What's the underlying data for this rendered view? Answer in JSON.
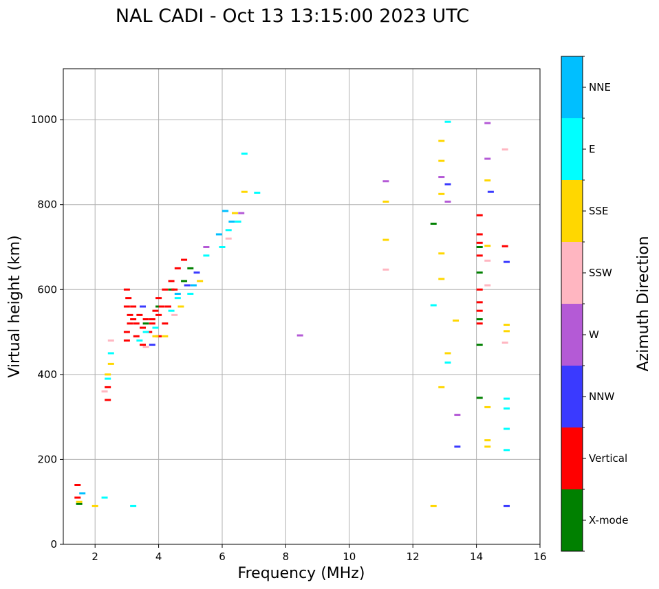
{
  "chart_data": {
    "type": "scatter",
    "title": "NAL CADI - Oct 13 13:15:00 2023 UTC",
    "xlabel": "Frequency (MHz)",
    "ylabel": "Virtual height (km)",
    "xlim": [
      1,
      16
    ],
    "ylim": [
      0,
      1120
    ],
    "xticks": [
      2,
      4,
      6,
      8,
      10,
      12,
      14,
      16
    ],
    "yticks": [
      0,
      200,
      400,
      600,
      800,
      1000
    ],
    "grid": true,
    "colorbar": {
      "label": "Azimuth Direction",
      "categories": [
        {
          "name": "X-mode",
          "color": "#008000"
        },
        {
          "name": "Vertical",
          "color": "#ff0000"
        },
        {
          "name": "NNW",
          "color": "#3a3aff"
        },
        {
          "name": "W",
          "color": "#b45ad6"
        },
        {
          "name": "SSW",
          "color": "#ffb6c1"
        },
        {
          "name": "SSE",
          "color": "#ffd700"
        },
        {
          "name": "E",
          "color": "#00ffff"
        },
        {
          "name": "NNE",
          "color": "#00bfff"
        }
      ]
    },
    "series": [
      {
        "name": "X-mode",
        "points": [
          [
            12.65,
            755
          ],
          [
            14.1,
            345
          ],
          [
            14.1,
            470
          ],
          [
            14.1,
            530
          ],
          [
            14.1,
            640
          ],
          [
            14.1,
            700
          ],
          [
            3.6,
            520
          ],
          [
            4.4,
            600
          ],
          [
            5.0,
            650
          ],
          [
            4.8,
            620
          ],
          [
            1.5,
            95
          ],
          [
            4.0,
            560
          ]
        ]
      },
      {
        "name": "Vertical",
        "points": [
          [
            3.0,
            600
          ],
          [
            3.05,
            580
          ],
          [
            3.0,
            560
          ],
          [
            3.1,
            540
          ],
          [
            3.1,
            520
          ],
          [
            3.0,
            500
          ],
          [
            3.2,
            530
          ],
          [
            3.3,
            520
          ],
          [
            3.4,
            540
          ],
          [
            3.5,
            510
          ],
          [
            3.6,
            530
          ],
          [
            3.7,
            500
          ],
          [
            3.8,
            520
          ],
          [
            3.9,
            550
          ],
          [
            4.0,
            580
          ],
          [
            4.0,
            540
          ],
          [
            4.1,
            560
          ],
          [
            4.2,
            520
          ],
          [
            4.3,
            560
          ],
          [
            4.2,
            600
          ],
          [
            4.4,
            620
          ],
          [
            4.6,
            650
          ],
          [
            4.8,
            670
          ],
          [
            3.0,
            480
          ],
          [
            3.3,
            490
          ],
          [
            3.5,
            470
          ],
          [
            4.0,
            490
          ],
          [
            4.5,
            600
          ],
          [
            14.1,
            520
          ],
          [
            14.1,
            550
          ],
          [
            14.1,
            570
          ],
          [
            14.1,
            600
          ],
          [
            14.1,
            680
          ],
          [
            14.1,
            710
          ],
          [
            14.1,
            730
          ],
          [
            14.1,
            775
          ],
          [
            14.9,
            702
          ],
          [
            2.4,
            340
          ],
          [
            2.4,
            370
          ],
          [
            1.45,
            110
          ],
          [
            1.45,
            140
          ],
          [
            3.8,
            530
          ],
          [
            3.2,
            560
          ]
        ]
      },
      {
        "name": "NNW",
        "points": [
          [
            13.1,
            848
          ],
          [
            14.45,
            830
          ],
          [
            14.95,
            665
          ],
          [
            13.4,
            230
          ],
          [
            14.95,
            90
          ],
          [
            4.9,
            610
          ],
          [
            5.2,
            640
          ],
          [
            3.8,
            470
          ],
          [
            3.5,
            560
          ]
        ]
      },
      {
        "name": "W",
        "points": [
          [
            11.15,
            855
          ],
          [
            12.9,
            865
          ],
          [
            13.1,
            807
          ],
          [
            14.35,
            992
          ],
          [
            14.35,
            908
          ],
          [
            8.45,
            492
          ],
          [
            13.4,
            305
          ],
          [
            5.5,
            700
          ],
          [
            6.6,
            780
          ]
        ]
      },
      {
        "name": "SSW",
        "points": [
          [
            14.9,
            930
          ],
          [
            14.35,
            668
          ],
          [
            14.35,
            610
          ],
          [
            14.9,
            475
          ],
          [
            11.15,
            647
          ],
          [
            2.5,
            480
          ],
          [
            2.3,
            360
          ],
          [
            3.6,
            465
          ],
          [
            4.5,
            540
          ],
          [
            6.2,
            720
          ],
          [
            6.5,
            760
          ]
        ]
      },
      {
        "name": "SSE",
        "points": [
          [
            12.9,
            950
          ],
          [
            12.9,
            903
          ],
          [
            12.9,
            825
          ],
          [
            12.9,
            685
          ],
          [
            12.9,
            625
          ],
          [
            13.1,
            450
          ],
          [
            13.35,
            527
          ],
          [
            12.9,
            370
          ],
          [
            12.65,
            90
          ],
          [
            14.35,
            857
          ],
          [
            14.35,
            703
          ],
          [
            14.95,
            517
          ],
          [
            14.95,
            502
          ],
          [
            14.35,
            323
          ],
          [
            14.35,
            245
          ],
          [
            14.35,
            230
          ],
          [
            11.15,
            807
          ],
          [
            11.15,
            717
          ],
          [
            2.0,
            90
          ],
          [
            1.5,
            100
          ],
          [
            2.4,
            400
          ],
          [
            2.5,
            425
          ],
          [
            3.9,
            490
          ],
          [
            4.2,
            490
          ],
          [
            5.3,
            620
          ],
          [
            6.4,
            780
          ],
          [
            6.7,
            830
          ],
          [
            4.7,
            560
          ]
        ]
      },
      {
        "name": "E",
        "points": [
          [
            13.1,
            995
          ],
          [
            12.65,
            563
          ],
          [
            13.1,
            428
          ],
          [
            14.95,
            343
          ],
          [
            14.95,
            320
          ],
          [
            14.95,
            272
          ],
          [
            14.95,
            222
          ],
          [
            2.3,
            110
          ],
          [
            3.2,
            90
          ],
          [
            3.4,
            480
          ],
          [
            3.6,
            500
          ],
          [
            4.6,
            580
          ],
          [
            5.0,
            590
          ],
          [
            5.5,
            680
          ],
          [
            6.0,
            700
          ],
          [
            6.2,
            740
          ],
          [
            6.5,
            760
          ],
          [
            6.7,
            920
          ],
          [
            7.1,
            828
          ],
          [
            4.4,
            550
          ],
          [
            3.9,
            510
          ],
          [
            2.4,
            390
          ],
          [
            2.5,
            450
          ]
        ]
      },
      {
        "name": "NNE",
        "points": [
          [
            6.1,
            785
          ],
          [
            6.3,
            760
          ],
          [
            5.9,
            730
          ],
          [
            1.6,
            120
          ],
          [
            4.6,
            590
          ],
          [
            5.1,
            610
          ]
        ]
      }
    ]
  }
}
